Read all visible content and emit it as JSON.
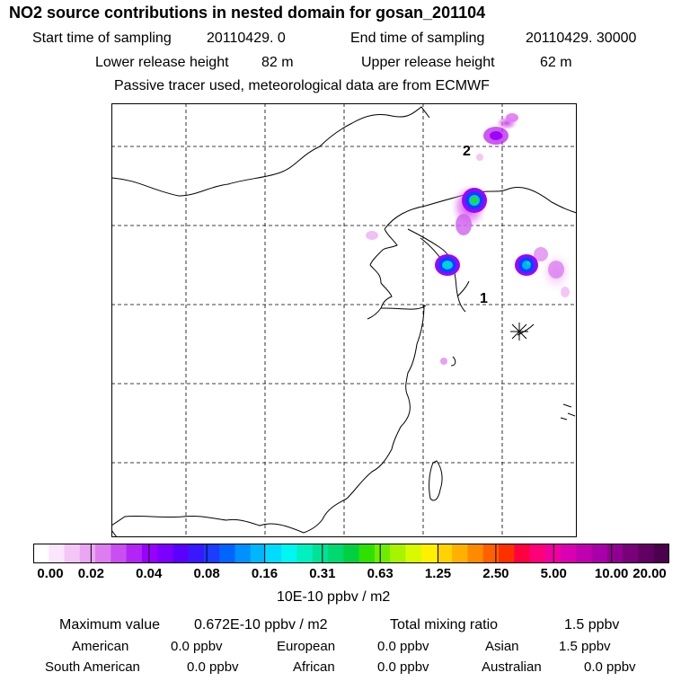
{
  "header": {
    "title": "NO2 source contributions in nested domain for gosan_201104",
    "start_label": "Start time of sampling",
    "start_value": "20110429.     0",
    "end_label": "End time of sampling",
    "end_value": "20110429. 30000",
    "lower_label": "Lower release height",
    "lower_value": "82 m",
    "upper_label": "Upper release height",
    "upper_value": "62 m",
    "note": "Passive tracer used, meteorological data are from ECMWF"
  },
  "map": {
    "region_labels": [
      "1",
      "2"
    ],
    "colors": {
      "low": "#f3c6f6",
      "mid": "#a000ff",
      "high_core": "#00c8a0",
      "blue": "#1040ff"
    }
  },
  "legend": {
    "ticks": [
      "0.00",
      "0.02",
      "0.04",
      "0.08",
      "0.16",
      "0.31",
      "0.63",
      "1.25",
      "2.50",
      "5.00",
      "10.00",
      "20.00"
    ],
    "unit": "10E-10 ppbv / m2",
    "colors": [
      "#ffffff",
      "#fbe6fd",
      "#f3c6f6",
      "#eaa6f2",
      "#dd7ef0",
      "#c94ff0",
      "#b325f5",
      "#9a00ff",
      "#7b00ff",
      "#5a00ff",
      "#3a18ff",
      "#1c3cff",
      "#0064ff",
      "#0090ff",
      "#00b6ff",
      "#00dcff",
      "#00f6f0",
      "#00f0c0",
      "#00e296",
      "#00d870",
      "#00d040",
      "#30e000",
      "#70ec00",
      "#a8f400",
      "#d8fa00",
      "#fff000",
      "#ffd200",
      "#ffb000",
      "#ff8a00",
      "#ff6000",
      "#ff3000",
      "#ff0040",
      "#ff0078",
      "#f000a0",
      "#d800b0",
      "#c000b0",
      "#a800a8",
      "#900090",
      "#780078",
      "#600060",
      "#4a004a"
    ]
  },
  "summary": {
    "max_label": "Maximum value",
    "max_value": "0.672E-10 ppbv / m2",
    "total_label": "Total mixing ratio",
    "total_value": "1.5 ppbv",
    "regions": [
      {
        "name": "American",
        "value": "0.0 ppbv"
      },
      {
        "name": "European",
        "value": "0.0 ppbv"
      },
      {
        "name": "Asian",
        "value": "1.5 ppbv"
      },
      {
        "name": "South American",
        "value": "0.0 ppbv"
      },
      {
        "name": "African",
        "value": "0.0 ppbv"
      },
      {
        "name": "Australian",
        "value": "0.0 ppbv"
      }
    ]
  }
}
